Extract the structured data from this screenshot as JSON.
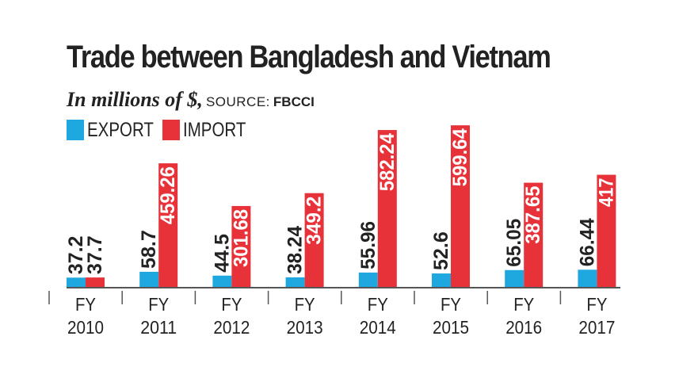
{
  "title": "Trade between Bangladesh and Vietnam",
  "subtitle": {
    "units": "In millions of $,",
    "source_label": "SOURCE:",
    "source_name": "FBCCI"
  },
  "colors": {
    "export": "#1fa8e0",
    "import": "#e8323a",
    "text": "#222222",
    "axis": "#555555"
  },
  "chart_data": {
    "type": "bar",
    "title": "Trade between Bangladesh and Vietnam",
    "subtitle": "In millions of $, SOURCE: FBCCI",
    "categories": [
      "FY 2010",
      "FY 2011",
      "FY 2012",
      "FY 2013",
      "FY 2014",
      "FY 2015",
      "FY 2016",
      "FY 2017"
    ],
    "category_lines": [
      [
        "FY",
        "2010"
      ],
      [
        "FY",
        "2011"
      ],
      [
        "FY",
        "2012"
      ],
      [
        "FY",
        "2013"
      ],
      [
        "FY",
        "2014"
      ],
      [
        "FY",
        "2015"
      ],
      [
        "FY",
        "2016"
      ],
      [
        "FY",
        "2017"
      ]
    ],
    "series": [
      {
        "name": "EXPORT",
        "values": [
          37.2,
          58.7,
          44.5,
          38.24,
          55.96,
          52.6,
          65.05,
          66.44
        ],
        "labels": [
          "37.2",
          "58.7",
          "44.5",
          "38.24",
          "55.96",
          "52.6",
          "65.05",
          "66.44"
        ]
      },
      {
        "name": "IMPORT",
        "values": [
          37.7,
          459.26,
          301.68,
          349.2,
          582.24,
          599.64,
          387.65,
          417
        ],
        "labels": [
          "37.7",
          "459.26",
          "301.68",
          "349.2",
          "582.24",
          "599.64",
          "387.65",
          "417"
        ]
      }
    ],
    "ylim": [
      0,
      600
    ],
    "grid": false,
    "legend_position": "top-left"
  }
}
